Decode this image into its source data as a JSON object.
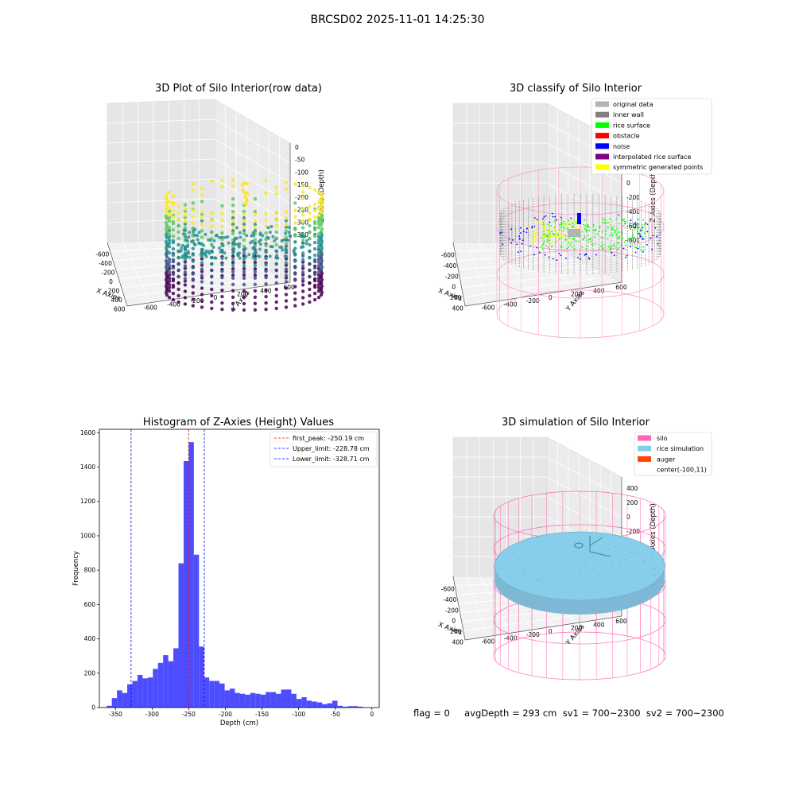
{
  "figure_title": "BRCSD02 2025-11-01 14:25:30",
  "status_text": "flag = 0     avgDepth = 293 cm  sv1 = 700~2300  sv2 = 700~2300",
  "chart_data": [
    {
      "id": "raw",
      "type": "scatter",
      "title": "3D Plot of Silo Interior(row data)",
      "xlabel": "X Axies",
      "ylabel": "Y Axies",
      "zlabel": "Z Axies (Depth)",
      "xticks": [
        "-600",
        "-400",
        "-200",
        "0",
        "200",
        "400",
        "600"
      ],
      "yticks": [
        "-600",
        "-400",
        "-200",
        "0",
        "200",
        "400",
        "600"
      ],
      "zticks": [
        "0",
        "-50",
        "-100",
        "-150",
        "-200",
        "-250",
        "-300",
        "-350"
      ],
      "colormap": [
        "#440154",
        "#3b528b",
        "#21918c",
        "#5ec962",
        "#fde725"
      ]
    },
    {
      "id": "classify",
      "type": "scatter",
      "title": "3D classify of Silo Interior",
      "xlabel": "X Axies",
      "ylabel": "Y Axies",
      "zlabel": "Z Axies (Depth)",
      "xticks": [
        "-600",
        "-400",
        "-200",
        "0",
        "200",
        "400"
      ],
      "yticks": [
        "-600",
        "-400",
        "-200",
        "0",
        "200",
        "400",
        "600"
      ],
      "zticks": [
        "400",
        "200",
        "0",
        "-200",
        "-400",
        "-600",
        "-800"
      ],
      "legend_position": "upper right",
      "legend": [
        {
          "label": "original data",
          "color": "#b3b3b3"
        },
        {
          "label": "inner wall",
          "color": "#808080"
        },
        {
          "label": "rice surface",
          "color": "#00ff00"
        },
        {
          "label": "obstacle",
          "color": "#ff0000"
        },
        {
          "label": "noise",
          "color": "#0000ff"
        },
        {
          "label": "interpolated rice surface",
          "color": "#800080"
        },
        {
          "label": "symmetric generated points",
          "color": "#ffff00"
        }
      ],
      "silo_color": "#ff99cc"
    },
    {
      "id": "hist",
      "type": "bar",
      "title": "Histogram of Z-Axies (Height) Values",
      "xlabel": "Depth (cm)",
      "ylabel": "Frequency",
      "xlim": [
        -372,
        10
      ],
      "ylim": [
        0,
        1620
      ],
      "xticks": [
        -350,
        -300,
        -250,
        -200,
        -150,
        -100,
        -50,
        0
      ],
      "yticks": [
        0,
        200,
        400,
        600,
        800,
        1000,
        1200,
        1400,
        1600
      ],
      "bar_color": "#4d4dff",
      "bins": [
        {
          "x0": -362,
          "x1": -355,
          "y": 10
        },
        {
          "x0": -355,
          "x1": -348,
          "y": 55
        },
        {
          "x0": -348,
          "x1": -341,
          "y": 100
        },
        {
          "x0": -341,
          "x1": -334,
          "y": 85
        },
        {
          "x0": -334,
          "x1": -327,
          "y": 135
        },
        {
          "x0": -327,
          "x1": -320,
          "y": 155
        },
        {
          "x0": -320,
          "x1": -313,
          "y": 190
        },
        {
          "x0": -313,
          "x1": -306,
          "y": 170
        },
        {
          "x0": -306,
          "x1": -299,
          "y": 175
        },
        {
          "x0": -299,
          "x1": -292,
          "y": 225
        },
        {
          "x0": -292,
          "x1": -285,
          "y": 260
        },
        {
          "x0": -285,
          "x1": -278,
          "y": 305
        },
        {
          "x0": -278,
          "x1": -271,
          "y": 270
        },
        {
          "x0": -271,
          "x1": -264,
          "y": 345
        },
        {
          "x0": -264,
          "x1": -257,
          "y": 840
        },
        {
          "x0": -257,
          "x1": -250,
          "y": 1435
        },
        {
          "x0": -250,
          "x1": -243,
          "y": 1545
        },
        {
          "x0": -243,
          "x1": -236,
          "y": 890
        },
        {
          "x0": -236,
          "x1": -229,
          "y": 355
        },
        {
          "x0": -229,
          "x1": -222,
          "y": 175
        },
        {
          "x0": -222,
          "x1": -215,
          "y": 155
        },
        {
          "x0": -215,
          "x1": -208,
          "y": 155
        },
        {
          "x0": -208,
          "x1": -201,
          "y": 140
        },
        {
          "x0": -201,
          "x1": -194,
          "y": 100
        },
        {
          "x0": -194,
          "x1": -187,
          "y": 110
        },
        {
          "x0": -187,
          "x1": -180,
          "y": 85
        },
        {
          "x0": -180,
          "x1": -173,
          "y": 80
        },
        {
          "x0": -173,
          "x1": -166,
          "y": 75
        },
        {
          "x0": -166,
          "x1": -159,
          "y": 85
        },
        {
          "x0": -159,
          "x1": -152,
          "y": 80
        },
        {
          "x0": -152,
          "x1": -145,
          "y": 75
        },
        {
          "x0": -145,
          "x1": -138,
          "y": 90
        },
        {
          "x0": -138,
          "x1": -131,
          "y": 90
        },
        {
          "x0": -131,
          "x1": -124,
          "y": 80
        },
        {
          "x0": -124,
          "x1": -117,
          "y": 105
        },
        {
          "x0": -117,
          "x1": -110,
          "y": 105
        },
        {
          "x0": -110,
          "x1": -103,
          "y": 80
        },
        {
          "x0": -103,
          "x1": -96,
          "y": 50
        },
        {
          "x0": -96,
          "x1": -89,
          "y": 60
        },
        {
          "x0": -89,
          "x1": -82,
          "y": 40
        },
        {
          "x0": -82,
          "x1": -75,
          "y": 35
        },
        {
          "x0": -75,
          "x1": -68,
          "y": 30
        },
        {
          "x0": -68,
          "x1": -61,
          "y": 20
        },
        {
          "x0": -61,
          "x1": -54,
          "y": 25
        },
        {
          "x0": -54,
          "x1": -47,
          "y": 40
        },
        {
          "x0": -47,
          "x1": -40,
          "y": 10
        },
        {
          "x0": -40,
          "x1": -33,
          "y": 5
        },
        {
          "x0": -33,
          "x1": -26,
          "y": 8
        },
        {
          "x0": -26,
          "x1": -19,
          "y": 8
        },
        {
          "x0": -19,
          "x1": -12,
          "y": 5
        }
      ],
      "lines": [
        {
          "label": "first_peak: -250.19 cm",
          "x": -250.19,
          "color": "#ff0000"
        },
        {
          "label": "Upper_limit: -228.78 cm",
          "x": -228.78,
          "color": "#0000ff"
        },
        {
          "label": "Lower_limit: -328.71 cm",
          "x": -328.71,
          "color": "#0000ff"
        }
      ],
      "legend_position": "upper right"
    },
    {
      "id": "simulation",
      "type": "scatter",
      "title": "3D simulation of Silo Interior",
      "xlabel": "X Axies",
      "ylabel": "Y Axies",
      "zlabel": "Z Axies (Depth)",
      "xticks": [
        "-600",
        "-400",
        "-200",
        "0",
        "200",
        "400"
      ],
      "yticks": [
        "-600",
        "-400",
        "-200",
        "0",
        "200",
        "400",
        "600"
      ],
      "zticks": [
        "400",
        "200",
        "0",
        "-200",
        "-400",
        "-600",
        "-800"
      ],
      "legend_position": "upper right",
      "legend": [
        {
          "label": "silo",
          "color": "#ff69b4"
        },
        {
          "label": "rice simulation",
          "color": "#87ceeb"
        },
        {
          "label": "auger",
          "color": "#ff4500"
        },
        {
          "label": "center(-100,11)",
          "color": ""
        }
      ]
    }
  ]
}
